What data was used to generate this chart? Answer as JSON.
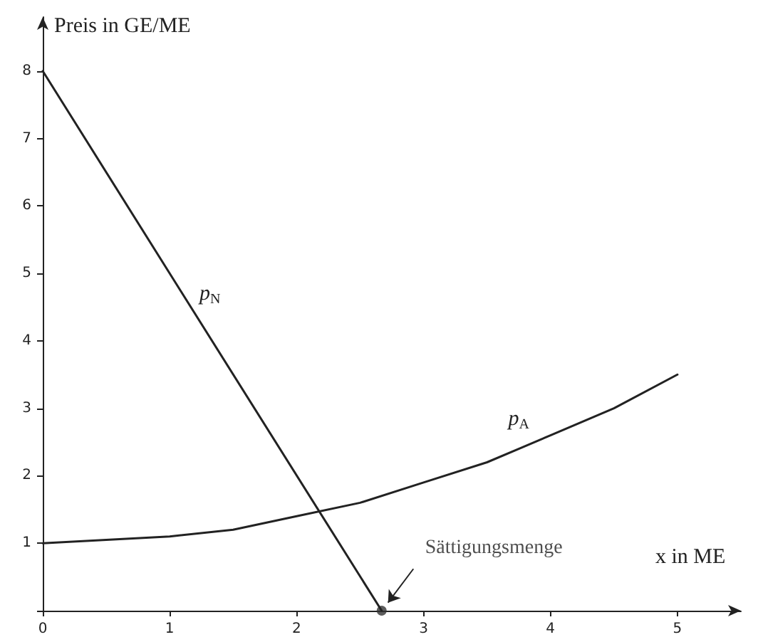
{
  "chart_data": {
    "type": "line",
    "xlabel": "x in ME",
    "ylabel": "Preis in GE/ME",
    "xlim": [
      0,
      5.5
    ],
    "xticks": [
      0,
      1,
      2,
      3,
      4,
      5
    ],
    "ylim": [
      0,
      8.8
    ],
    "yticks": [
      {
        "value": 0,
        "label": null
      },
      1,
      2,
      3,
      4,
      5,
      6,
      7,
      8
    ],
    "marker": "none",
    "line_style": "solid",
    "series": [
      {
        "name": "p$_{N}$",
        "color": "#222222",
        "x": [
          0,
          1.1,
          2.67
        ],
        "values": [
          8,
          4.7,
          0
        ]
      },
      {
        "name": "p$_{A}$",
        "color": "#222222",
        "x": [
          0,
          0.5,
          1,
          1.5,
          2,
          2.5,
          3,
          3.5,
          3.75,
          4,
          4.5,
          5
        ],
        "values": [
          1,
          1.05,
          1.1,
          1.2,
          1.4,
          1.6,
          1.9,
          2.2,
          2.4,
          2.6,
          3.0,
          3.5
        ]
      }
    ],
    "annotations": [
      {
        "text": "Sättigungsmenge",
        "x": 2.67,
        "y": 0
      }
    ]
  }
}
